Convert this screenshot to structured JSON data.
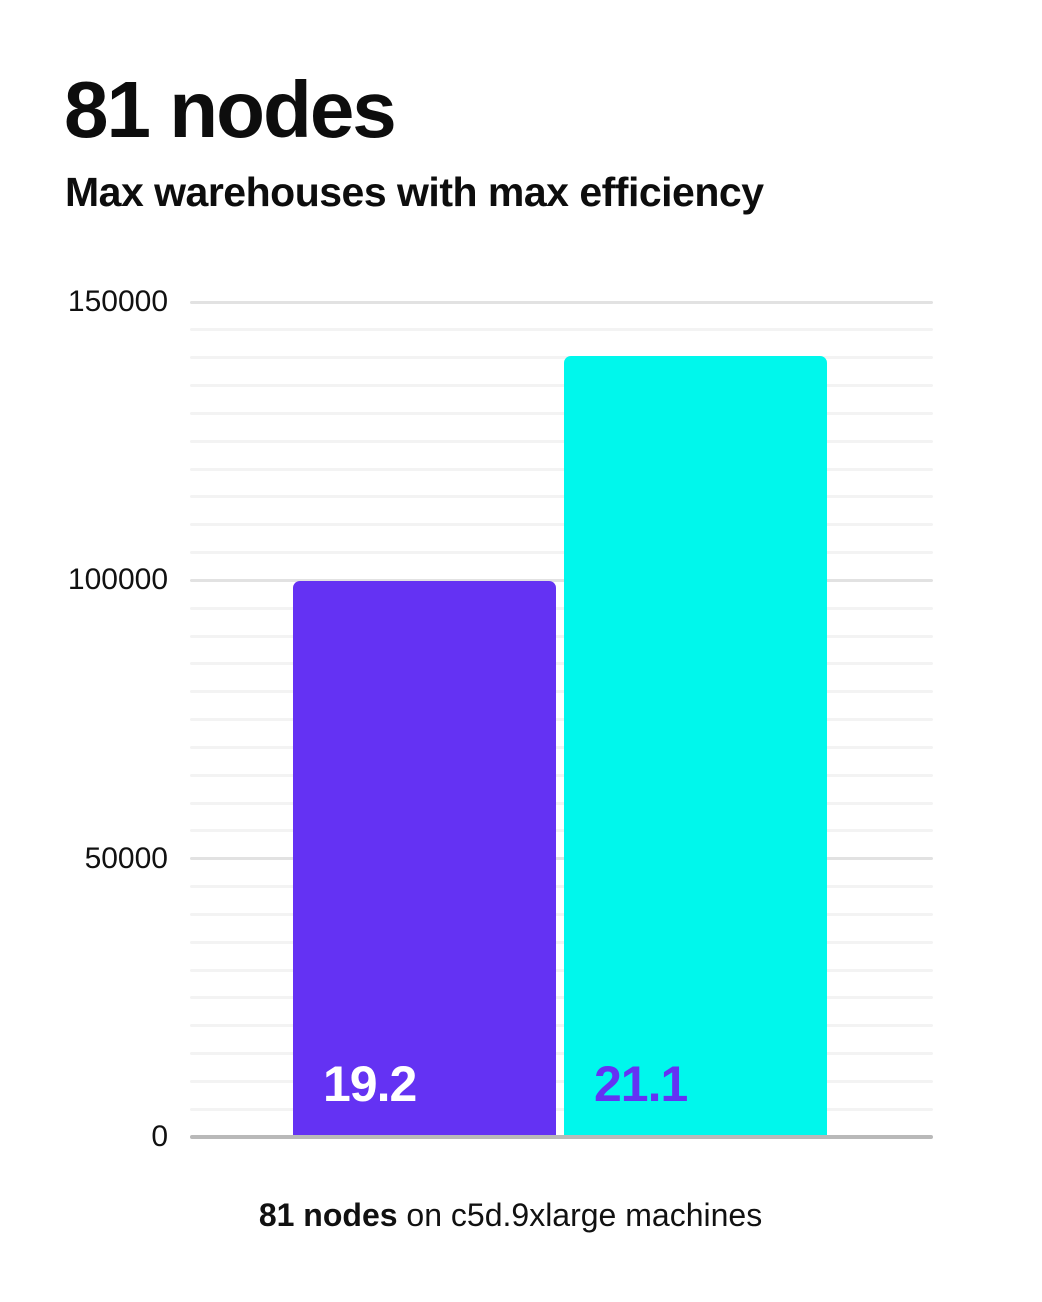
{
  "header": {
    "title": "81 nodes",
    "subtitle": "Max warehouses with max efficiency"
  },
  "caption": {
    "bold": "81 nodes",
    "rest": " on c5d.9xlarge machines",
    "full_text": "81 nodes on c5d.9xlarge machines"
  },
  "colors": {
    "purple": "#6432f3",
    "cyan": "#00f7ec",
    "bar_label_on_purple": "#ffffff",
    "bar_label_on_cyan": "#6432f3",
    "axis": "#b9b9b9",
    "grid_minor": "#f3f3f3",
    "grid_major": "#e2e2e2",
    "text": "#0d0d0d",
    "card_background": "#ffffff"
  },
  "chart_data": {
    "type": "bar",
    "title": "81 nodes",
    "subtitle": "Max warehouses with max efficiency",
    "caption": "81 nodes on c5d.9xlarge machines",
    "bars": [
      {
        "bar_label": "19.2",
        "value": 99500,
        "color": "#6432f3",
        "label_color": "#ffffff"
      },
      {
        "bar_label": "21.1",
        "value": 139900,
        "color": "#00f7ec",
        "label_color": "#6432f3"
      }
    ],
    "xlabel": "",
    "ylabel": "",
    "ylim": [
      0,
      150000
    ],
    "yticks": [
      150000,
      100000,
      50000,
      0
    ],
    "ytick_labels": [
      "150000",
      "100000",
      "50000",
      "0"
    ],
    "grid": {
      "minor_step": 5000,
      "major_step": 50000,
      "visible": true
    },
    "legend_position": "none"
  }
}
